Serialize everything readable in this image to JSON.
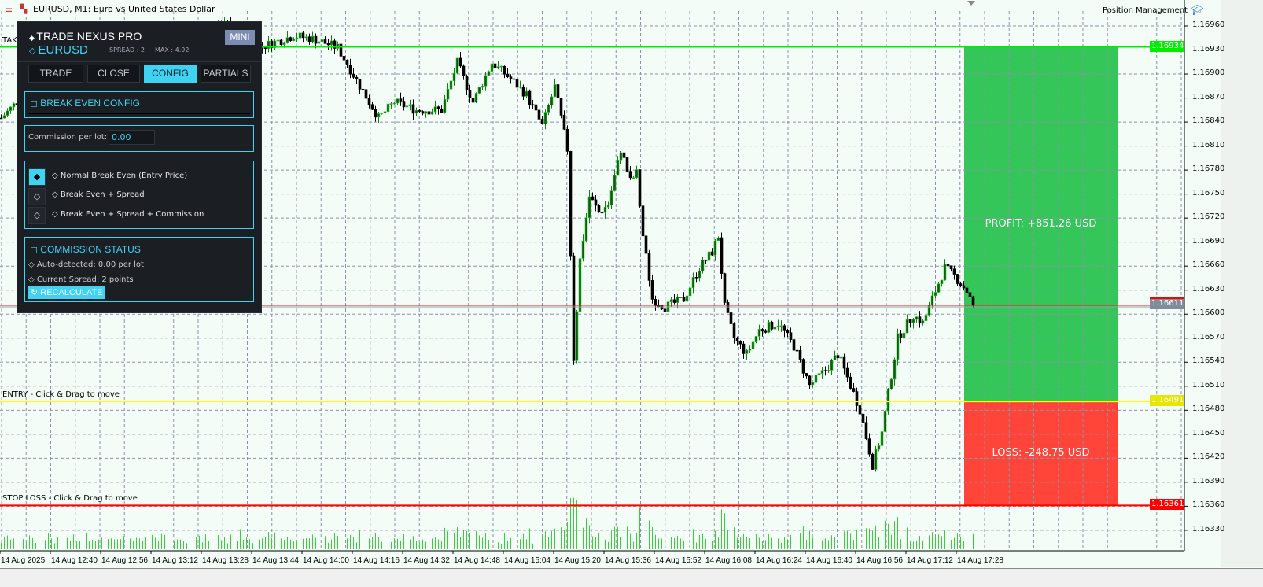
{
  "window": {
    "title": "EURUSD, M1:  Euro vs United States Dollar",
    "position_management_label": "Position Management"
  },
  "chart_data": {
    "type": "candlestick",
    "symbol": "EURUSD",
    "timeframe": "M1",
    "y_ticks": [
      "1.16960",
      "1.16930",
      "1.16900",
      "1.16870",
      "1.16840",
      "1.16810",
      "1.16780",
      "1.16750",
      "1.16720",
      "1.16690",
      "1.16660",
      "1.16630",
      "1.16600",
      "1.16570",
      "1.16540",
      "1.16510",
      "1.16480",
      "1.16450",
      "1.16420",
      "1.16390",
      "1.16360",
      "1.16330"
    ],
    "ylim": [
      1.163,
      1.16985
    ],
    "x_ticks": [
      "14 Aug 2025",
      "14 Aug 12:40",
      "14 Aug 12:56",
      "14 Aug 13:12",
      "14 Aug 13:28",
      "14 Aug 13:44",
      "14 Aug 14:00",
      "14 Aug 14:16",
      "14 Aug 14:32",
      "14 Aug 14:48",
      "14 Aug 15:04",
      "14 Aug 15:20",
      "14 Aug 15:36",
      "14 Aug 15:52",
      "14 Aug 16:08",
      "14 Aug 16:24",
      "14 Aug 16:40",
      "14 Aug 16:56",
      "14 Aug 17:12",
      "14 Aug 17:28"
    ],
    "grid": true,
    "price_path": [
      [
        "12:24",
        1.16845
      ],
      [
        "12:29",
        1.16865
      ],
      [
        "12:49",
        1.16895
      ],
      [
        "13:14",
        1.16915
      ],
      [
        "13:36",
        1.16963
      ],
      [
        "13:46",
        1.16933
      ],
      [
        "13:57",
        1.16948
      ],
      [
        "14:04",
        1.16943
      ],
      [
        "14:11",
        1.16933
      ],
      [
        "14:16",
        1.16899
      ],
      [
        "14:24",
        1.16845
      ],
      [
        "14:29",
        1.16865
      ],
      [
        "14:36",
        1.16855
      ],
      [
        "14:44",
        1.16855
      ],
      [
        "14:49",
        1.16914
      ],
      [
        "14:54",
        1.16865
      ],
      [
        "15:00",
        1.16914
      ],
      [
        "15:06",
        1.16894
      ],
      [
        "15:11",
        1.16874
      ],
      [
        "15:16",
        1.16835
      ],
      [
        "15:20",
        1.16884
      ],
      [
        "15:22",
        1.16845
      ],
      [
        "15:24",
        1.16806
      ],
      [
        "15:26",
        1.16545
      ],
      [
        "15:28",
        1.16668
      ],
      [
        "15:31",
        1.16747
      ],
      [
        "15:34",
        1.16727
      ],
      [
        "15:37",
        1.16737
      ],
      [
        "15:41",
        1.16806
      ],
      [
        "15:44",
        1.16766
      ],
      [
        "15:46",
        1.16776
      ],
      [
        "15:48",
        1.16698
      ],
      [
        "15:51",
        1.16619
      ],
      [
        "15:55",
        1.16609
      ],
      [
        "16:01",
        1.16619
      ],
      [
        "16:06",
        1.16658
      ],
      [
        "16:10",
        1.16678
      ],
      [
        "16:12",
        1.16698
      ],
      [
        "16:14",
        1.16609
      ],
      [
        "16:17",
        1.1657
      ],
      [
        "16:21",
        1.1655
      ],
      [
        "16:25",
        1.1658
      ],
      [
        "16:31",
        1.16589
      ],
      [
        "16:36",
        1.1656
      ],
      [
        "16:41",
        1.16511
      ],
      [
        "16:46",
        1.1653
      ],
      [
        "16:50",
        1.1655
      ],
      [
        "16:54",
        1.16511
      ],
      [
        "16:57",
        1.16481
      ],
      [
        "17:01",
        1.16412
      ],
      [
        "17:04",
        1.16452
      ],
      [
        "17:06",
        1.16501
      ],
      [
        "17:09",
        1.1657
      ],
      [
        "17:14",
        1.16599
      ],
      [
        "17:17",
        1.16589
      ],
      [
        "17:21",
        1.16629
      ],
      [
        "17:24",
        1.16658
      ],
      [
        "17:27",
        1.16648
      ],
      [
        "17:31",
        1.16629
      ],
      [
        "17:33",
        1.16611
      ]
    ],
    "levels": {
      "take_profit": {
        "price": "1.16934",
        "label": "TAK",
        "color": "#00ee00"
      },
      "current": {
        "price": "1.16611",
        "color": "#e02020"
      },
      "entry": {
        "price": "1.16491",
        "label": "ENTRY - Click & Drag to move",
        "color": "#ffff00"
      },
      "stop_loss": {
        "price": "1.16361",
        "label": "STOP LOSS - Click & Drag to move",
        "color": "#ff0000"
      }
    },
    "zones": {
      "profit": {
        "label": "PROFIT: +851.26 USD",
        "color": "#34c659"
      },
      "loss": {
        "label": "LOSS: -248.75 USD",
        "color": "#ff453a"
      }
    }
  },
  "panel": {
    "title": "TRADE NEXUS PRO",
    "symbol": "EURUSD",
    "spread": "SPREAD : 2",
    "max": "MAX : 4.92",
    "mini_label": "MINI",
    "tabs": [
      {
        "label": "TRADE",
        "active": false
      },
      {
        "label": "CLOSE",
        "active": false
      },
      {
        "label": "CONFIG",
        "active": true
      },
      {
        "label": "PARTIALS",
        "active": false
      }
    ],
    "break_even": {
      "title": "◻ BREAK EVEN CONFIG",
      "commission_label": "Commission per lot:",
      "commission_value": "0.00",
      "options": [
        {
          "label": "◇ Normal Break Even (Entry Price)",
          "selected": true
        },
        {
          "label": "◇ Break Even + Spread",
          "selected": false
        },
        {
          "label": "◇ Break Even + Spread + Commission",
          "selected": false
        }
      ]
    },
    "commission_status": {
      "title": "◻ COMMISSION STATUS",
      "auto_detected": "◇ Auto-detected: 0.00 per lot",
      "current_spread": "◇ Current Spread: 2 points",
      "recalculate_label": "↻ RECALCULATE"
    },
    "accent": "#3fd3f2"
  }
}
